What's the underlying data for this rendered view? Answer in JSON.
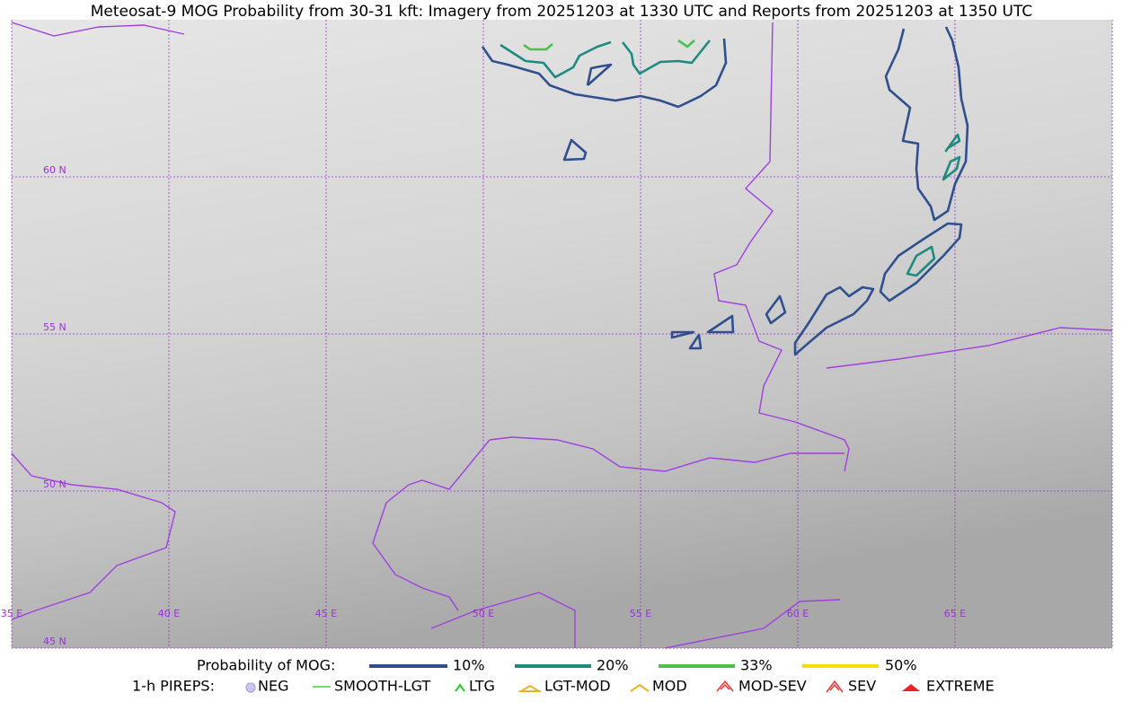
{
  "title": "Meteosat-9 MOG Probability from 30-31 kft: Imagery from 20251203 at 1330 UTC and Reports from 20251203 at 1350 UTC",
  "map": {
    "lat_labels": [
      "60 N",
      "55 N",
      "50 N",
      "45 N"
    ],
    "lon_labels": [
      "35 E",
      "40 E",
      "45 E",
      "50 E",
      "55 E",
      "60 E",
      "65 E"
    ]
  },
  "legend": {
    "probability": {
      "label": "Probability of MOG:",
      "items": [
        "10%",
        "20%",
        "33%",
        "50%"
      ]
    },
    "pireps": {
      "label": "1-h PIREPS:",
      "items": [
        "NEG",
        "SMOOTH-LGT",
        "LTG",
        "LGT-MOD",
        "MOD",
        "MOD-SEV",
        "SEV",
        "EXTREME"
      ]
    }
  }
}
